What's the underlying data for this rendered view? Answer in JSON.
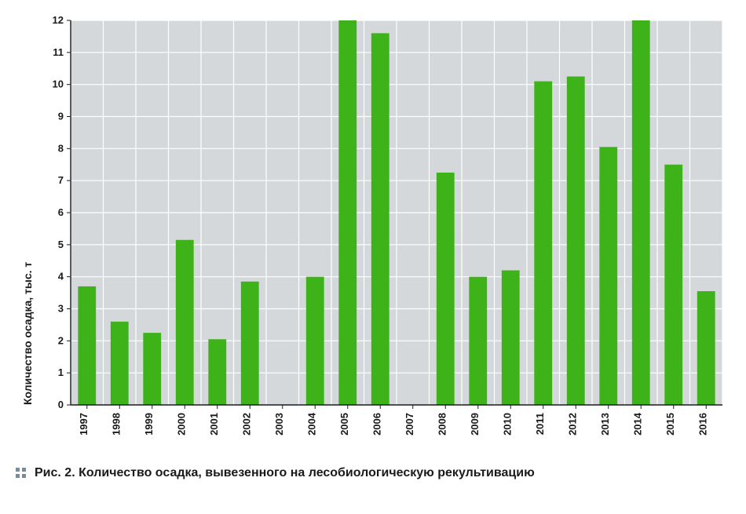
{
  "chart": {
    "type": "bar",
    "ylabel": "Количество осадка, тыс. т",
    "label_fontsize": 14,
    "label_fontweight": "700",
    "label_color": "#1a1a1a",
    "categories": [
      "1997",
      "1998",
      "1999",
      "2000",
      "2001",
      "2002",
      "2003",
      "2004",
      "2005",
      "2006",
      "2007",
      "2008",
      "2009",
      "2010",
      "2011",
      "2012",
      "2013",
      "2014",
      "2015",
      "2016"
    ],
    "values": [
      3.7,
      2.6,
      2.25,
      5.15,
      2.05,
      3.85,
      0,
      4.0,
      12.0,
      11.6,
      0,
      7.25,
      4.0,
      4.2,
      10.1,
      10.25,
      8.05,
      12.0,
      7.5,
      3.55
    ],
    "bar_color": "#3eb319",
    "ylim": [
      0,
      12
    ],
    "ytick_step": 1,
    "background_color": "#ffffff",
    "plot_background_color": "#d4d8da",
    "grid_color": "#ffffff",
    "grid_stroke": 1.2,
    "tick_fontsize": 13,
    "tick_fontweight": "700",
    "tick_color": "#1a1a1a",
    "bar_width_ratio": 0.55,
    "axis_color": "#1a1a1a"
  },
  "caption": {
    "text": "Рис. 2. Количество осадка, вывезенного на лесобиологическую рекультивацию",
    "dots_color": "#7e8a94"
  }
}
